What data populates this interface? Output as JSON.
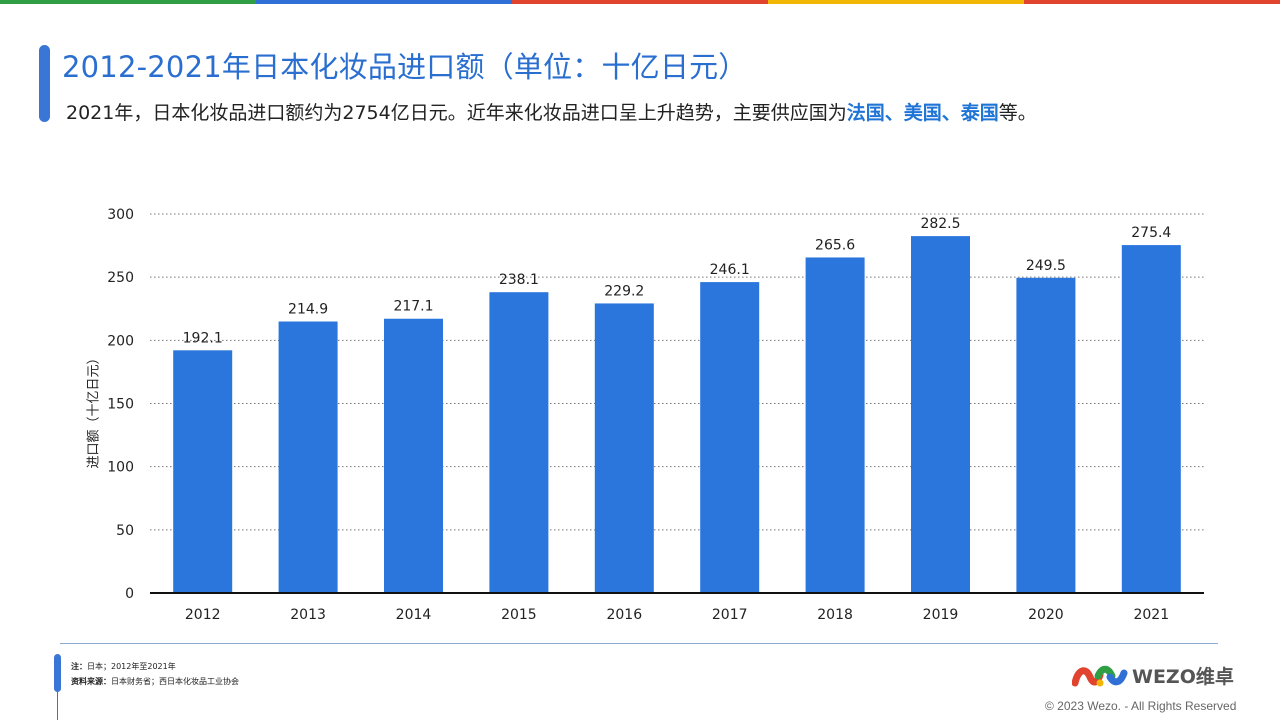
{
  "top_stripe_colors": [
    "#2f9e44",
    "#2f6fd6",
    "#e0432e",
    "#f2b705",
    "#e0432e"
  ],
  "header": {
    "title": "2012-2021年日本化妆品进口额（单位：十亿日元）",
    "subtitle_pre": "2021年，日本化妆品进口额约为2754亿日元。近年来化妆品进口呈上升趋势，主要供应国为",
    "subtitle_hl": "法国、美国、泰国",
    "subtitle_post": "等。"
  },
  "chart_data": {
    "type": "bar",
    "categories": [
      "2012",
      "2013",
      "2014",
      "2015",
      "2016",
      "2017",
      "2018",
      "2019",
      "2020",
      "2021"
    ],
    "values": [
      192.1,
      214.9,
      217.1,
      238.1,
      229.2,
      246.1,
      265.6,
      282.5,
      249.5,
      275.4
    ],
    "value_labels": [
      "192.1",
      "214.9",
      "217.1",
      "238.1",
      "229.2",
      "246.1",
      "265.6",
      "282.5",
      "249.5",
      "275.4"
    ],
    "ylabel": "进口额（十亿日元）",
    "ylim": [
      0,
      300
    ],
    "yticks": [
      0,
      50,
      100,
      150,
      200,
      250,
      300
    ],
    "grid": "dotted horizontal",
    "bar_color": "#2a76dd"
  },
  "footer": {
    "note_label": "注：",
    "note_text": "日本；2012年至2021年",
    "source_label": "资料来源：",
    "source_text": "日本财务省；西日本化妆品工业协会",
    "logo_text": "WEZO维卓",
    "copyright": "© 2023 Wezo. - All Rights Reserved"
  }
}
